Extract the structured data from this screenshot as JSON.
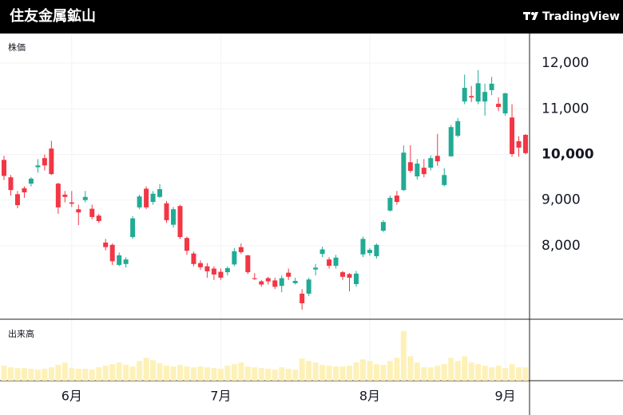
{
  "header": {
    "title": "住友金属鉱山",
    "brand": "TradingView"
  },
  "chart_data": {
    "type": "candlestick",
    "price_label": "株価",
    "volume_label": "出来高",
    "categories": [
      null,
      null,
      null,
      null,
      null,
      null,
      null,
      null,
      null,
      null,
      "6月",
      null,
      null,
      null,
      null,
      null,
      null,
      null,
      null,
      null,
      null,
      null,
      null,
      null,
      null,
      null,
      null,
      null,
      null,
      null,
      null,
      null,
      "7月",
      null,
      null,
      null,
      null,
      null,
      null,
      null,
      null,
      null,
      null,
      null,
      null,
      null,
      null,
      null,
      null,
      null,
      null,
      null,
      null,
      null,
      "8月",
      null,
      null,
      null,
      null,
      null,
      null,
      null,
      null,
      null,
      null,
      null,
      null,
      null,
      null,
      null,
      null,
      null,
      null,
      null,
      "9月",
      null,
      null,
      null
    ],
    "open": [
      9880,
      9500,
      9130,
      9260,
      9360,
      9720,
      9920,
      10130,
      9360,
      9120,
      8950,
      8800,
      9000,
      8810,
      8660,
      8070,
      8020,
      7580,
      7600,
      8190,
      8840,
      9250,
      8960,
      9070,
      8930,
      8460,
      8870,
      8170,
      7830,
      7620,
      7550,
      7500,
      7430,
      7420,
      7590,
      7970,
      7790,
      7290,
      7220,
      7290,
      7240,
      7120,
      7410,
      7180,
      6950,
      6950,
      7480,
      7820,
      7700,
      7560,
      7420,
      7380,
      7160,
      7810,
      7840,
      7770,
      8330,
      8770,
      9100,
      9220,
      9830,
      9520,
      9710,
      9710,
      9970,
      9330,
      9960,
      10410,
      11160,
      11280,
      11160,
      11160,
      11410,
      11110,
      10900,
      10810,
      10290,
      10430
    ],
    "close": [
      9530,
      9220,
      8890,
      9170,
      9470,
      9760,
      9760,
      9570,
      8840,
      9070,
      8920,
      8730,
      9070,
      8630,
      8540,
      7970,
      7660,
      7790,
      7700,
      8600,
      9080,
      8840,
      9140,
      9240,
      8560,
      8800,
      8190,
      7890,
      7600,
      7530,
      7440,
      7370,
      7300,
      7510,
      7880,
      7860,
      7420,
      7270,
      7150,
      7220,
      7100,
      7290,
      7320,
      7230,
      6740,
      7260,
      7520,
      7920,
      7560,
      7740,
      7320,
      7300,
      7390,
      8150,
      7910,
      8020,
      8520,
      9050,
      8960,
      10040,
      9640,
      9800,
      9570,
      9920,
      9850,
      9550,
      10600,
      10730,
      11460,
      11250,
      11560,
      11370,
      11550,
      11040,
      11340,
      10010,
      10150,
      10030
    ],
    "high": [
      9970,
      9550,
      9200,
      9300,
      9500,
      9900,
      10000,
      10300,
      9380,
      9200,
      9200,
      8900,
      9200,
      8900,
      8700,
      8150,
      8050,
      7850,
      7750,
      8650,
      9120,
      9300,
      9200,
      9350,
      8980,
      8850,
      8900,
      8200,
      7870,
      7680,
      7620,
      7550,
      7500,
      7550,
      7950,
      8050,
      7800,
      7400,
      7250,
      7320,
      7300,
      7350,
      7500,
      7300,
      7050,
      7300,
      7600,
      7980,
      7750,
      7800,
      7450,
      7400,
      7450,
      8200,
      7950,
      8050,
      8560,
      9100,
      9200,
      10200,
      10200,
      9900,
      9900,
      9980,
      10450,
      9700,
      10650,
      10800,
      11750,
      11500,
      11850,
      11550,
      11700,
      11250,
      11350,
      11100,
      10400,
      10450
    ],
    "low": [
      9440,
      9100,
      8820,
      9050,
      9300,
      9600,
      9650,
      9550,
      8700,
      8950,
      8850,
      8450,
      8950,
      8580,
      8500,
      7900,
      7580,
      7550,
      7520,
      8150,
      8800,
      8800,
      8900,
      9050,
      8500,
      8400,
      8150,
      7800,
      7550,
      7470,
      7300,
      7250,
      7250,
      7350,
      7550,
      7820,
      7380,
      7250,
      7100,
      7150,
      7050,
      6980,
      7250,
      7150,
      6600,
      6900,
      7350,
      7750,
      7500,
      7500,
      7250,
      7000,
      7100,
      7750,
      7780,
      7720,
      8300,
      8750,
      8900,
      9200,
      9600,
      9450,
      9500,
      9650,
      9750,
      9300,
      9950,
      10380,
      11100,
      11150,
      11100,
      10850,
      11300,
      10950,
      10850,
      9950,
      9950,
      10000
    ],
    "volume": [
      16,
      14,
      13,
      13,
      12,
      11,
      12,
      14,
      17,
      20,
      13,
      12,
      12,
      11,
      14,
      16,
      18,
      20,
      17,
      15,
      22,
      26,
      23,
      19,
      16,
      15,
      17,
      15,
      14,
      15,
      14,
      13,
      12,
      16,
      18,
      20,
      15,
      14,
      13,
      12,
      11,
      14,
      12,
      11,
      25,
      22,
      20,
      17,
      16,
      15,
      15,
      16,
      20,
      24,
      22,
      18,
      17,
      22,
      26,
      60,
      28,
      20,
      14,
      14,
      16,
      18,
      26,
      22,
      28,
      20,
      18,
      16,
      14,
      16,
      13,
      18,
      14,
      14
    ],
    "ylim": [
      6390,
      12650
    ],
    "yticks": [
      {
        "value": 8000,
        "label": "8,000"
      },
      {
        "value": 9000,
        "label": "9,000"
      },
      {
        "value": 10000,
        "label": "10,000"
      },
      {
        "value": 11000,
        "label": "11,000"
      },
      {
        "value": 12000,
        "label": "12,000"
      }
    ],
    "highlight_tick": 10000,
    "volume_ylim": [
      0,
      75
    ],
    "up_color": "#22ab94",
    "down_color": "#f23645",
    "volume_color": "#fdf1b8",
    "grid": true
  }
}
